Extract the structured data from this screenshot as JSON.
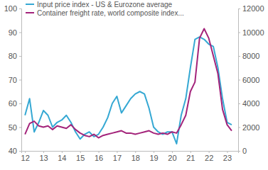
{
  "chart_data": {
    "type": "line",
    "x": [
      12,
      12.25,
      12.5,
      12.75,
      13,
      13.25,
      13.5,
      13.75,
      14,
      14.25,
      14.5,
      14.75,
      15,
      15.25,
      15.5,
      15.75,
      16,
      16.25,
      16.5,
      16.75,
      17,
      17.25,
      17.5,
      17.75,
      18,
      18.25,
      18.5,
      18.75,
      19,
      19.25,
      19.5,
      19.75,
      20,
      20.25,
      20.5,
      20.75,
      21,
      21.25,
      21.5,
      21.75,
      22,
      22.25,
      22.5,
      22.75,
      23,
      23.25
    ],
    "series": [
      {
        "name": "Input price index - US & Eurozone average",
        "color": "#35a8d3",
        "values": [
          55,
          62,
          48,
          52,
          57,
          55,
          50,
          52,
          53,
          55,
          52,
          48,
          45,
          47,
          48,
          46,
          47,
          50,
          54,
          60,
          63,
          56,
          59,
          62,
          64,
          65,
          64,
          58,
          50,
          48,
          47,
          48,
          48,
          43,
          55,
          62,
          75,
          87,
          88,
          87,
          85,
          84,
          75,
          62,
          52,
          51
        ]
      },
      {
        "name": "Container freight rate, world composite index...",
        "color": "#a3237a",
        "axis": "y2",
        "values": [
          1400,
          2300,
          2500,
          2100,
          2000,
          2100,
          1800,
          2100,
          2000,
          1900,
          2200,
          1800,
          1500,
          1300,
          1200,
          1400,
          1100,
          1300,
          1400,
          1500,
          1600,
          1700,
          1500,
          1500,
          1400,
          1500,
          1600,
          1700,
          1500,
          1400,
          1500,
          1400,
          1600,
          1500,
          2200,
          3000,
          5000,
          5800,
          9500,
          10300,
          9500,
          8000,
          6500,
          3500,
          2200,
          1700
        ]
      }
    ],
    "xlim": [
      11.8,
      23.6
    ],
    "xticks": [
      12,
      13,
      14,
      15,
      16,
      17,
      18,
      19,
      20,
      21,
      22,
      23
    ],
    "ylim": [
      40,
      100
    ],
    "yticks": [
      40,
      50,
      60,
      70,
      80,
      90,
      100
    ],
    "y2lim": [
      0,
      12000
    ],
    "y2ticks": [
      0,
      2000,
      4000,
      6000,
      8000,
      10000,
      12000
    ],
    "legend": "upper left",
    "grid": false
  }
}
